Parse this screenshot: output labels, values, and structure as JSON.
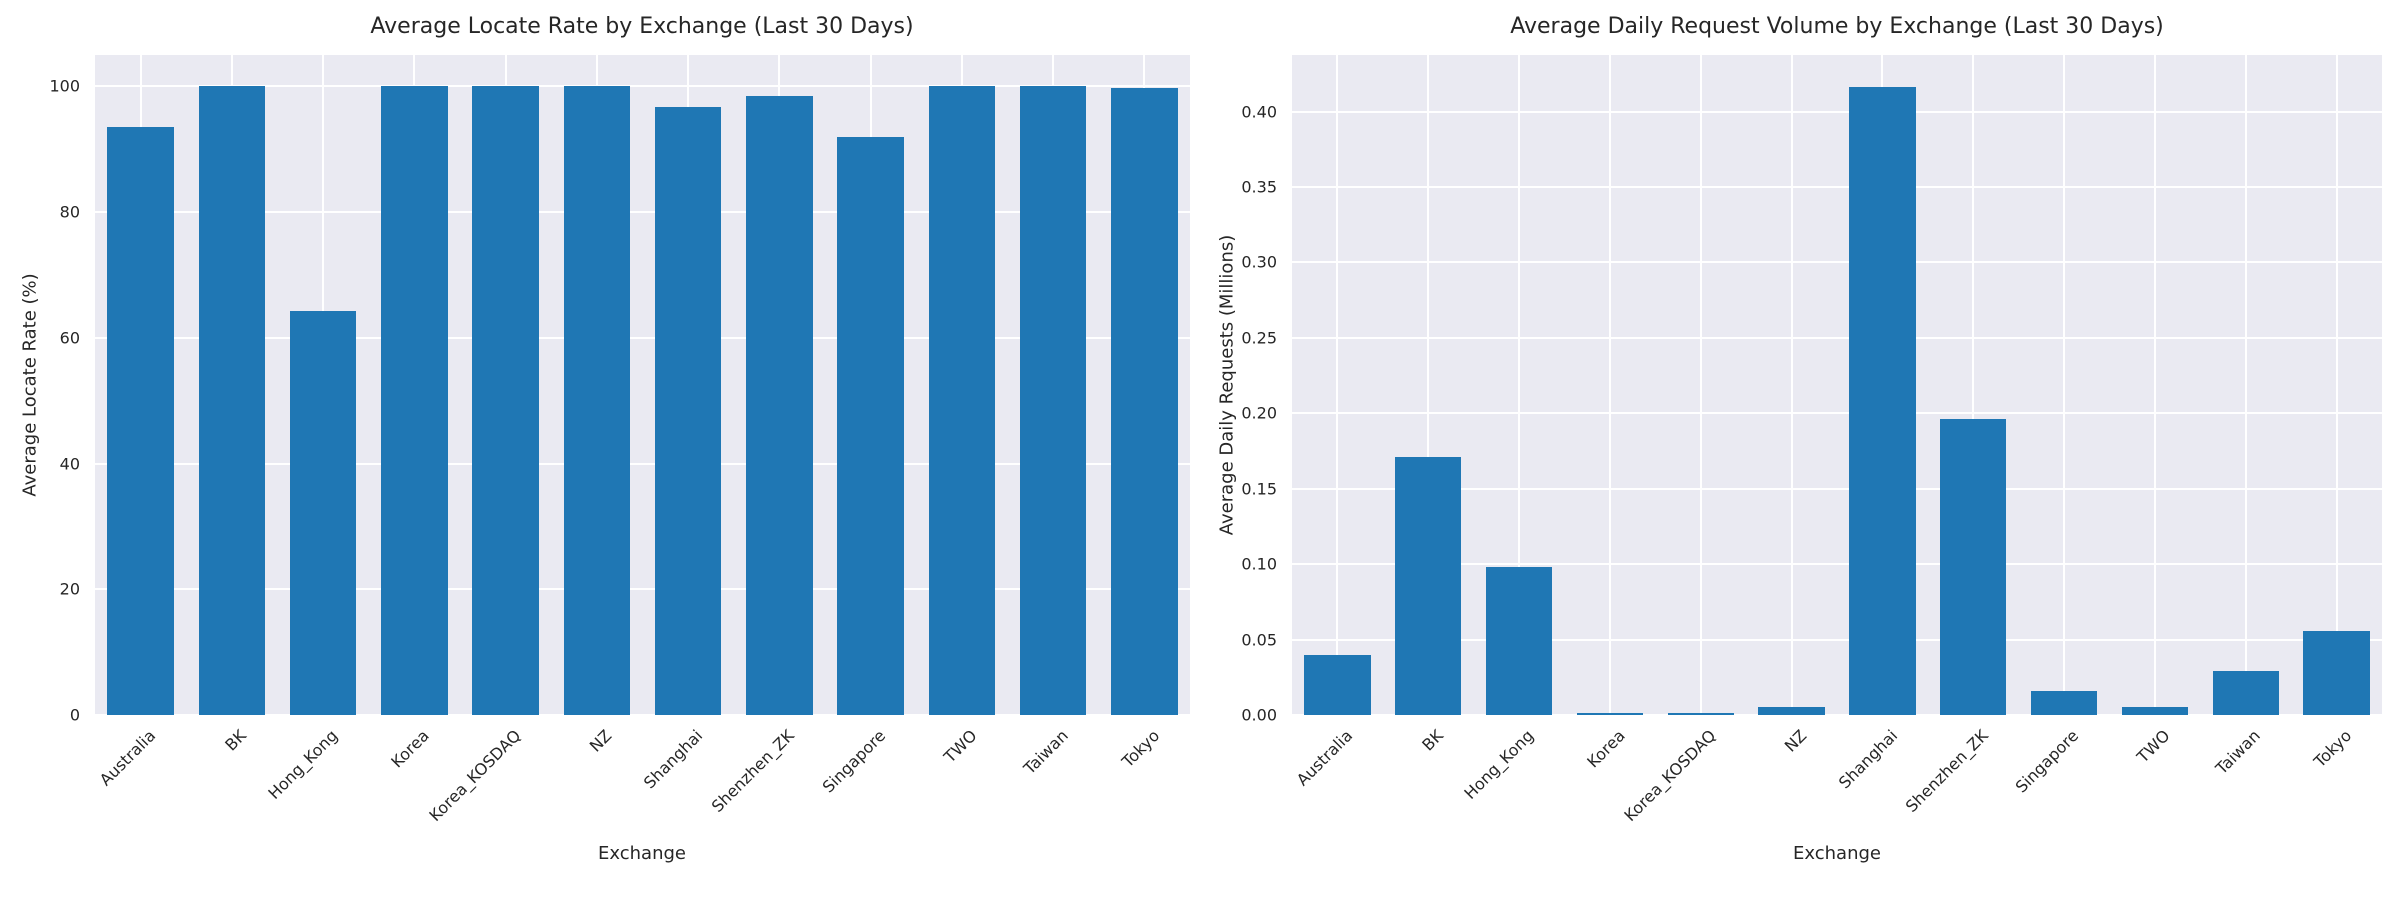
{
  "style": {
    "bar_color": "#1f77b4",
    "axes_background": "#eaeaf2",
    "grid_color": "#ffffff",
    "text_color": "#262626",
    "figure_background": "#ffffff"
  },
  "chart_data": [
    {
      "type": "bar",
      "title": "Average Locate Rate by Exchange (Last 30 Days)",
      "xlabel": "Exchange",
      "ylabel": "Average Locate Rate (%)",
      "categories": [
        "Australia",
        "BK",
        "Hong_Kong",
        "Korea",
        "Korea_KOSDAQ",
        "NZ",
        "Shanghai",
        "Shenzhen_ZK",
        "Singapore",
        "TWO",
        "Taiwan",
        "Tokyo"
      ],
      "values": [
        93.5,
        100.0,
        64.3,
        100.0,
        100.0,
        100.0,
        96.8,
        98.4,
        92.0,
        100.0,
        100.0,
        99.7
      ],
      "ylim": [
        0,
        105
      ],
      "yticks": [
        0,
        20,
        40,
        60,
        80,
        100
      ],
      "ytick_labels": [
        "0",
        "20",
        "40",
        "60",
        "80",
        "100"
      ],
      "grid": true,
      "legend": null,
      "xtick_rotation_deg": 45
    },
    {
      "type": "bar",
      "title": "Average Daily Request Volume by Exchange (Last 30 Days)",
      "xlabel": "Exchange",
      "ylabel": "Average Daily Requests (Millions)",
      "categories": [
        "Australia",
        "BK",
        "Hong_Kong",
        "Korea",
        "Korea_KOSDAQ",
        "NZ",
        "Shanghai",
        "Shenzhen_ZK",
        "Singapore",
        "TWO",
        "Taiwan",
        "Tokyo"
      ],
      "values": [
        0.04,
        0.171,
        0.098,
        0.001,
        0.001,
        0.005,
        0.416,
        0.196,
        0.016,
        0.005,
        0.029,
        0.056
      ],
      "ylim": [
        0,
        0.4375
      ],
      "yticks": [
        0.0,
        0.05,
        0.1,
        0.15,
        0.2,
        0.25,
        0.3,
        0.35,
        0.4
      ],
      "ytick_labels": [
        "0.00",
        "0.05",
        "0.10",
        "0.15",
        "0.20",
        "0.25",
        "0.30",
        "0.35",
        "0.40"
      ],
      "grid": true,
      "legend": null,
      "xtick_rotation_deg": 45
    }
  ]
}
